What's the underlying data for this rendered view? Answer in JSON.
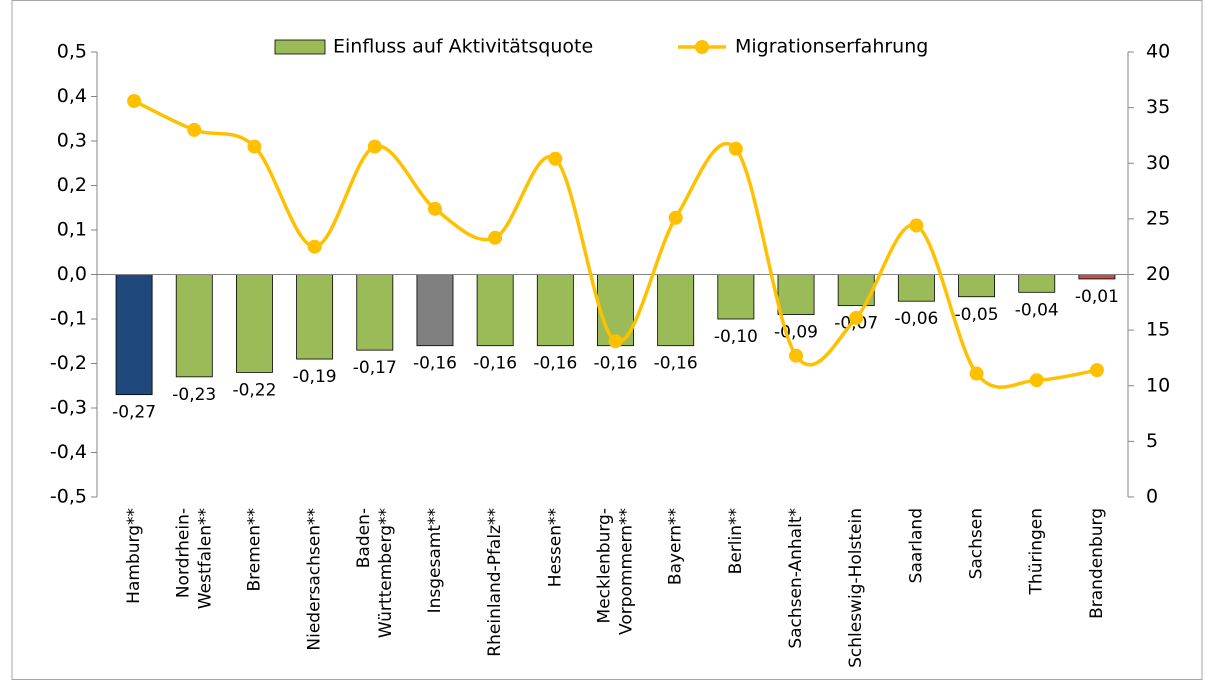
{
  "chart_data": {
    "type": "bar_line",
    "categories": [
      "Hamburg**",
      "Nordrhein-\nWestfalen**",
      "Bremen**",
      "Niedersachsen**",
      "Baden-\nWürttemberg**",
      "Insgesamt**",
      "Rheinland-Pfalz**",
      "Hessen**",
      "Mecklenburg-\nVorpommern**",
      "Bayern**",
      "Berlin**",
      "Sachsen-Anhalt*",
      "Schleswig-Holstein",
      "Saarland",
      "Sachsen",
      "Thüringen",
      "Brandenburg"
    ],
    "series": [
      {
        "name": "Einfluss auf Aktivitätsquote",
        "type": "bar",
        "color": "#9bbb59",
        "colors": [
          "#1f497d",
          "#9bbb59",
          "#9bbb59",
          "#9bbb59",
          "#9bbb59",
          "#808080",
          "#9bbb59",
          "#9bbb59",
          "#9bbb59",
          "#9bbb59",
          "#9bbb59",
          "#9bbb59",
          "#9bbb59",
          "#9bbb59",
          "#9bbb59",
          "#9bbb59",
          "#c0504d"
        ],
        "values": [
          -0.27,
          -0.23,
          -0.22,
          -0.19,
          -0.17,
          -0.16,
          -0.16,
          -0.16,
          -0.16,
          -0.16,
          -0.1,
          -0.09,
          -0.07,
          -0.06,
          -0.05,
          -0.04,
          -0.01
        ],
        "value_labels": [
          "-0,27",
          "-0,23",
          "-0,22",
          "-0,19",
          "-0,17",
          "-0,16",
          "-0,16",
          "-0,16",
          "-0,16",
          "-0,16",
          "-0,10",
          "-0,09",
          "-0,07",
          "-0,06",
          "-0,05",
          "-0,04",
          "-0,01"
        ]
      },
      {
        "name": "Migrationserfahrung",
        "type": "line",
        "axis": "y2",
        "color": "#ffc000",
        "values": [
          35.6,
          33.0,
          31.5,
          22.5,
          31.5,
          25.9,
          23.3,
          30.4,
          14.0,
          25.1,
          31.3,
          12.7,
          16.1,
          24.4,
          11.1,
          10.5,
          11.4
        ]
      }
    ],
    "ylim": [
      -0.5,
      0.5
    ],
    "yticks": [
      {
        "value": -0.5,
        "label": "-0,5"
      },
      {
        "value": -0.4,
        "label": "-0,4"
      },
      {
        "value": -0.3,
        "label": "-0,3"
      },
      {
        "value": -0.2,
        "label": "-0,2"
      },
      {
        "value": -0.1,
        "label": "-0,1"
      },
      {
        "value": 0,
        "label": "0,0"
      },
      {
        "value": 0.1,
        "label": "0,1"
      },
      {
        "value": 0.2,
        "label": "0,2"
      },
      {
        "value": 0.3,
        "label": "0,3"
      },
      {
        "value": 0.4,
        "label": "0,4"
      },
      {
        "value": 0.5,
        "label": "0,5"
      }
    ],
    "y2lim": [
      0,
      40
    ],
    "y2ticks": [
      0,
      5,
      10,
      15,
      20,
      25,
      30,
      35,
      40
    ],
    "legend": "top"
  }
}
